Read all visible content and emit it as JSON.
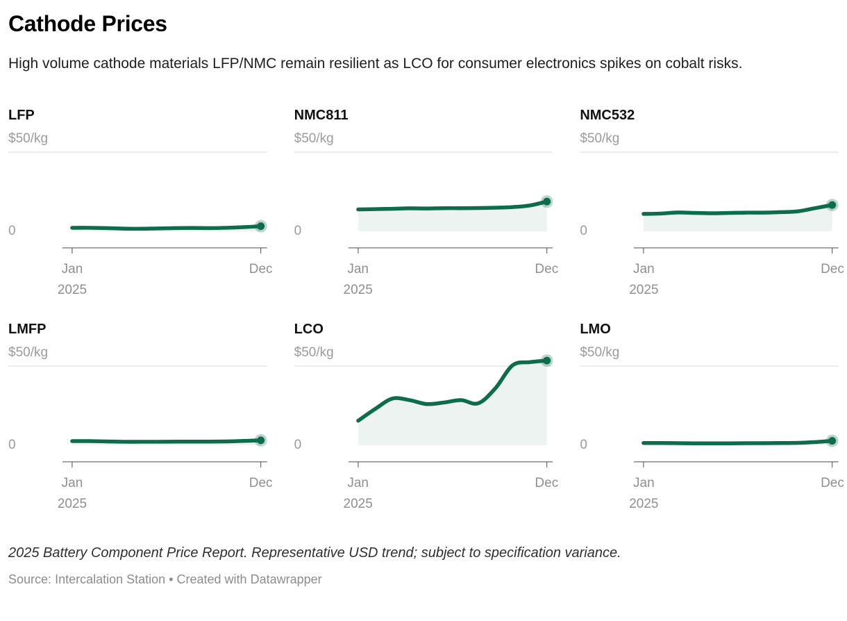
{
  "header": {
    "title": "Cathode Prices",
    "description": "High volume cathode materials LFP/NMC remain resilient as LCO for consumer electronics spikes on cobalt risks."
  },
  "colors": {
    "line": "#0d6b4e",
    "area": "#edf3f0",
    "grid": "#d9d9d9",
    "axis": "#4a4a4a",
    "dot_halo": "rgba(13,107,78,0.28)"
  },
  "chart_data": [
    {
      "type": "area",
      "title": "LFP",
      "ylabel_top": "$50/kg",
      "ylabel_zero": "0",
      "x_first": "Jan",
      "year": "2025",
      "x_last": "Dec",
      "ylim": [
        0,
        50
      ],
      "x": [
        "Jan",
        "Feb",
        "Mar",
        "Apr",
        "May",
        "Jun",
        "Jul",
        "Aug",
        "Sep",
        "Oct",
        "Nov",
        "Dec"
      ],
      "values": [
        2.2,
        2.2,
        2.0,
        1.7,
        1.6,
        1.8,
        2.0,
        2.1,
        2.0,
        2.2,
        2.6,
        3.2
      ]
    },
    {
      "type": "area",
      "title": "NMC811",
      "ylabel_top": "$50/kg",
      "ylabel_zero": "0",
      "x_first": "Jan",
      "year": "2025",
      "x_last": "Dec",
      "ylim": [
        0,
        50
      ],
      "x": [
        "Jan",
        "Feb",
        "Mar",
        "Apr",
        "May",
        "Jun",
        "Jul",
        "Aug",
        "Sep",
        "Oct",
        "Nov",
        "Dec"
      ],
      "values": [
        13.8,
        14.0,
        14.2,
        14.5,
        14.4,
        14.6,
        14.6,
        14.7,
        14.9,
        15.3,
        16.3,
        18.8
      ]
    },
    {
      "type": "area",
      "title": "NMC532",
      "ylabel_top": "$50/kg",
      "ylabel_zero": "0",
      "x_first": "Jan",
      "year": "2025",
      "x_last": "Dec",
      "ylim": [
        0,
        50
      ],
      "x": [
        "Jan",
        "Feb",
        "Mar",
        "Apr",
        "May",
        "Jun",
        "Jul",
        "Aug",
        "Sep",
        "Oct",
        "Nov",
        "Dec"
      ],
      "values": [
        11.0,
        11.2,
        11.9,
        11.6,
        11.4,
        11.6,
        11.8,
        11.8,
        12.1,
        12.6,
        14.6,
        16.6
      ]
    },
    {
      "type": "area",
      "title": "LMFP",
      "ylabel_top": "$50/kg",
      "ylabel_zero": "0",
      "x_first": "Jan",
      "year": "2025",
      "x_last": "Dec",
      "ylim": [
        0,
        50
      ],
      "x": [
        "Jan",
        "Feb",
        "Mar",
        "Apr",
        "May",
        "Jun",
        "Jul",
        "Aug",
        "Sep",
        "Oct",
        "Nov",
        "Dec"
      ],
      "values": [
        2.6,
        2.6,
        2.4,
        2.2,
        2.2,
        2.2,
        2.3,
        2.3,
        2.3,
        2.4,
        2.7,
        3.1
      ]
    },
    {
      "type": "area",
      "title": "LCO",
      "ylabel_top": "$50/kg",
      "ylabel_zero": "0",
      "x_first": "Jan",
      "year": "2025",
      "x_last": "Dec",
      "ylim": [
        0,
        50
      ],
      "x": [
        "Jan",
        "Feb",
        "Mar",
        "Apr",
        "May",
        "Jun",
        "Jul",
        "Aug",
        "Sep",
        "Oct",
        "Nov",
        "Dec"
      ],
      "values": [
        15.5,
        23,
        29.5,
        28.5,
        26,
        27,
        28.5,
        26.5,
        36,
        50.5,
        52.5,
        53.5
      ]
    },
    {
      "type": "area",
      "title": "LMO",
      "ylabel_top": "$50/kg",
      "ylabel_zero": "0",
      "x_first": "Jan",
      "year": "2025",
      "x_last": "Dec",
      "ylim": [
        0,
        50
      ],
      "x": [
        "Jan",
        "Feb",
        "Mar",
        "Apr",
        "May",
        "Jun",
        "Jul",
        "Aug",
        "Sep",
        "Oct",
        "Nov",
        "Dec"
      ],
      "values": [
        1.4,
        1.4,
        1.3,
        1.2,
        1.2,
        1.2,
        1.3,
        1.3,
        1.4,
        1.5,
        2.0,
        2.8
      ]
    }
  ],
  "footer": {
    "note": "2025 Battery Component Price Report. Representative USD trend; subject to specification variance.",
    "source_label": "Source:",
    "source_name": "Intercalation Station",
    "separator": "•",
    "attribution": "Created with Datawrapper"
  }
}
